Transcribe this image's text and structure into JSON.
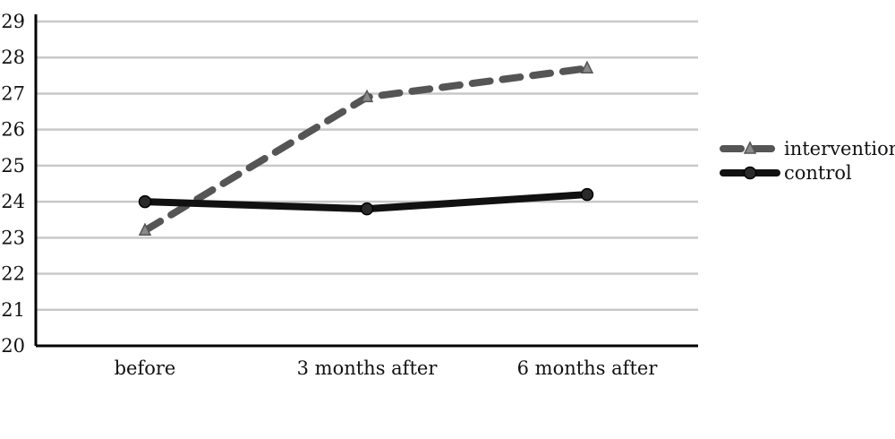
{
  "chart_data": {
    "type": "line",
    "categories": [
      "before",
      "3 months after",
      "6 months after"
    ],
    "series": [
      {
        "name": "intervention",
        "values": [
          23.2,
          26.9,
          27.7
        ],
        "color": "#555555",
        "line_style": "dashed",
        "marker": "triangle"
      },
      {
        "name": "control",
        "values": [
          24.0,
          23.8,
          24.2
        ],
        "color": "#111111",
        "line_style": "solid",
        "marker": "circle"
      }
    ],
    "ylim": [
      20,
      29
    ],
    "yticks": [
      "20",
      "21",
      "22",
      "23",
      "24",
      "25",
      "26",
      "27",
      "28",
      "29"
    ],
    "grid": "horizontal",
    "legend_position": "right"
  }
}
